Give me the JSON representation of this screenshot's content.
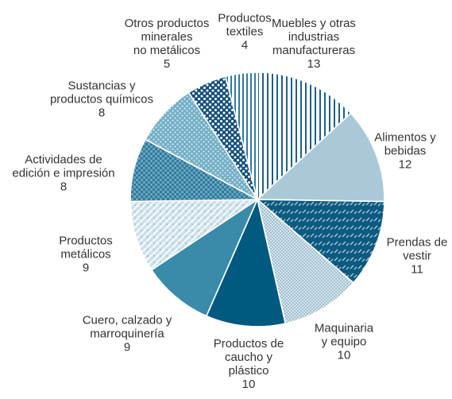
{
  "chart_data": {
    "type": "pie",
    "categories": [
      "Muebles y otras\nindustrias\nmanufactureras",
      "Alimentos y\nbebidas",
      "Prendas de\nvestir",
      "Maquinaria\ny equipo",
      "Productos de\ncaucho y\nplástico",
      "Cuero, calzado y\nmarroquinería",
      "Productos\nmetálicos",
      "Actividades de\nedición e impresión",
      "Sustancias y\nproductos químicos",
      "Otros productos\nminerales\nno metálicos",
      "Productos\ntextiles"
    ],
    "values": [
      13,
      12,
      11,
      10,
      10,
      9,
      9,
      8,
      8,
      5,
      4
    ],
    "colors": [
      "#ffffff",
      "#a9c9d9",
      "#0d5a80",
      "#dbe8ef",
      "#005a7f",
      "#3a8aa9",
      "#cfe1ea",
      "#2f7a9c",
      "#74afc7",
      "#15507a",
      "#ffffff"
    ]
  }
}
